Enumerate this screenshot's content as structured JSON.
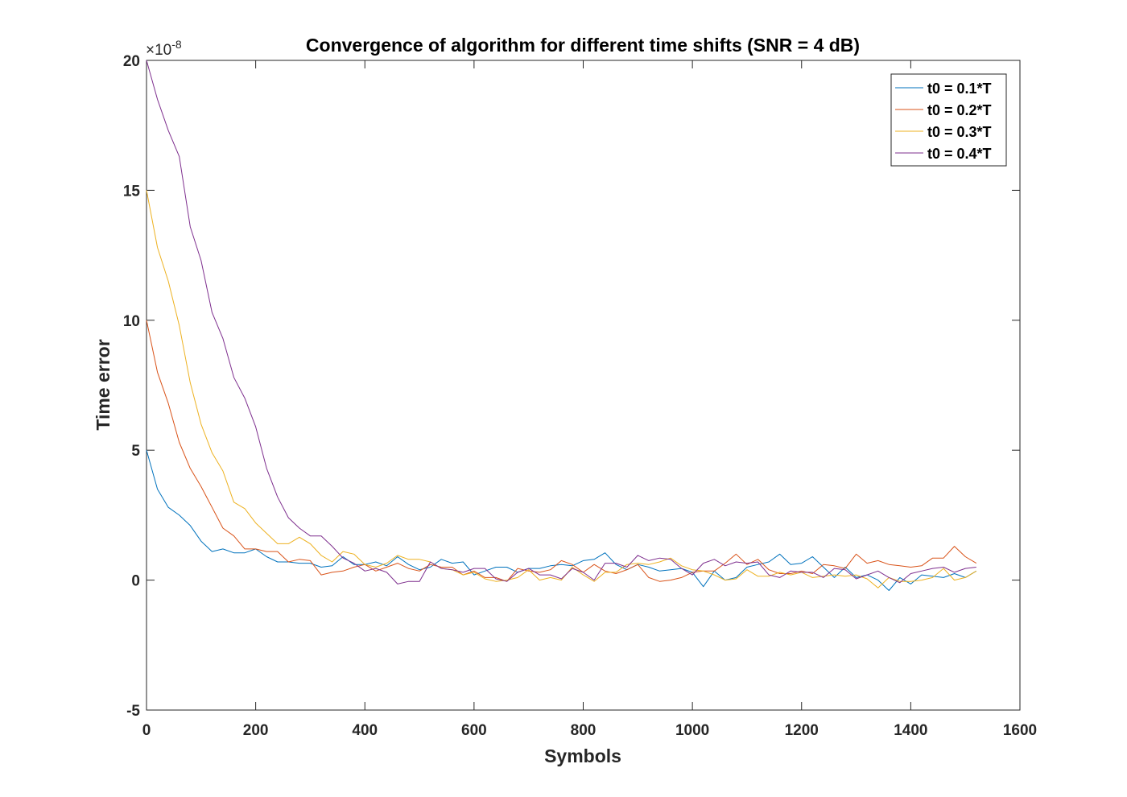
{
  "chart_data": {
    "type": "line",
    "title": "Convergence of algorithm for different time shifts (SNR = 4 dB)",
    "xlabel": "Symbols",
    "ylabel": "Time error",
    "y_multiplier": "×10",
    "y_multiplier_exponent": "-8",
    "xlim": [
      0,
      1600
    ],
    "ylim": [
      -5,
      20
    ],
    "xticks": [
      0,
      200,
      400,
      600,
      800,
      1000,
      1200,
      1400,
      1600
    ],
    "yticks": [
      -5,
      0,
      5,
      10,
      15,
      20
    ],
    "xtick_labels": [
      "0",
      "200",
      "400",
      "600",
      "800",
      "1000",
      "1200",
      "1400",
      "1600"
    ],
    "ytick_labels": [
      "-5",
      "0",
      "5",
      "10",
      "15",
      "20"
    ],
    "grid": false,
    "legend_position": "top-right",
    "x": [
      0,
      20,
      40,
      60,
      80,
      100,
      120,
      140,
      160,
      180,
      200,
      220,
      240,
      260,
      280,
      300,
      320,
      340,
      360,
      380,
      400,
      420,
      440,
      460,
      480,
      500,
      520,
      540,
      560,
      580,
      600,
      620,
      640,
      660,
      680,
      700,
      720,
      740,
      760,
      780,
      800,
      820,
      840,
      860,
      880,
      900,
      920,
      940,
      960,
      980,
      1000,
      1020,
      1040,
      1060,
      1080,
      1100,
      1120,
      1140,
      1160,
      1180,
      1200,
      1220,
      1240,
      1260,
      1280,
      1300,
      1320,
      1340,
      1360,
      1380,
      1400,
      1420,
      1440,
      1460,
      1480,
      1500,
      1520
    ],
    "series": [
      {
        "name": "t0 = 0.1*T",
        "color": "#0072BD",
        "values": [
          5.0,
          3.5,
          2.8,
          2.5,
          2.1,
          1.5,
          1.1,
          1.2,
          1.05,
          1.05,
          1.2,
          0.9,
          0.7,
          0.7,
          0.65,
          0.65,
          0.5,
          0.55,
          0.9,
          0.6,
          0.6,
          0.7,
          0.55,
          0.9,
          0.6,
          0.4,
          0.5,
          0.8,
          0.65,
          0.7,
          0.2,
          0.35,
          0.5,
          0.5,
          0.3,
          0.45,
          0.45,
          0.55,
          0.6,
          0.55,
          0.75,
          0.8,
          1.05,
          0.6,
          0.4,
          0.6,
          0.5,
          0.35,
          0.4,
          0.45,
          0.3,
          -0.25,
          0.35,
          0.0,
          0.1,
          0.5,
          0.6,
          0.7,
          1.0,
          0.6,
          0.65,
          0.9,
          0.5,
          0.1,
          0.5,
          0.1,
          0.2,
          0.0,
          -0.4,
          0.1,
          -0.15,
          0.2,
          0.15,
          0.1,
          0.25,
          0.1,
          0.35
        ]
      },
      {
        "name": "t0 = 0.2*T",
        "color": "#D95319",
        "values": [
          10.0,
          8.0,
          6.8,
          5.3,
          4.3,
          3.6,
          2.8,
          2.0,
          1.7,
          1.2,
          1.2,
          1.1,
          1.1,
          0.7,
          0.8,
          0.75,
          0.2,
          0.3,
          0.35,
          0.5,
          0.6,
          0.35,
          0.5,
          0.65,
          0.45,
          0.35,
          0.6,
          0.5,
          0.5,
          0.2,
          0.35,
          0.1,
          0.1,
          -0.05,
          0.45,
          0.35,
          0.3,
          0.4,
          0.75,
          0.6,
          0.3,
          0.6,
          0.35,
          0.25,
          0.4,
          0.6,
          0.1,
          -0.05,
          0.0,
          0.1,
          0.3,
          0.35,
          0.35,
          0.65,
          1.0,
          0.6,
          0.8,
          0.4,
          0.25,
          0.25,
          0.35,
          0.25,
          0.6,
          0.55,
          0.45,
          1.0,
          0.65,
          0.75,
          0.6,
          0.55,
          0.5,
          0.55,
          0.85,
          0.85,
          1.3,
          0.9,
          0.65
        ]
      },
      {
        "name": "t0 = 0.3*T",
        "color": "#EDB120",
        "values": [
          15.0,
          12.8,
          11.5,
          9.8,
          7.6,
          6.0,
          4.9,
          4.2,
          3.0,
          2.75,
          2.2,
          1.8,
          1.4,
          1.4,
          1.65,
          1.4,
          0.95,
          0.7,
          1.1,
          1.0,
          0.6,
          0.5,
          0.65,
          0.95,
          0.8,
          0.8,
          0.7,
          0.45,
          0.4,
          0.2,
          0.3,
          0.05,
          -0.05,
          0.0,
          0.1,
          0.4,
          0.0,
          0.1,
          0.0,
          0.5,
          0.2,
          -0.05,
          0.3,
          0.3,
          0.6,
          0.65,
          0.6,
          0.7,
          0.85,
          0.55,
          0.4,
          0.35,
          0.2,
          0.0,
          0.05,
          0.4,
          0.15,
          0.15,
          0.3,
          0.2,
          0.3,
          0.1,
          0.15,
          0.2,
          0.15,
          0.2,
          0.05,
          -0.3,
          0.1,
          -0.05,
          -0.05,
          0.0,
          0.1,
          0.45,
          0.0,
          0.1,
          0.35
        ]
      },
      {
        "name": "t0 = 0.4*T",
        "color": "#7E2F8E",
        "values": [
          20.0,
          18.5,
          17.3,
          16.3,
          13.6,
          12.3,
          10.3,
          9.3,
          7.8,
          7.0,
          5.9,
          4.3,
          3.2,
          2.4,
          2.0,
          1.7,
          1.7,
          1.3,
          0.85,
          0.65,
          0.35,
          0.45,
          0.3,
          -0.15,
          -0.05,
          -0.05,
          0.7,
          0.45,
          0.4,
          0.3,
          0.45,
          0.45,
          0.05,
          -0.05,
          0.3,
          0.45,
          0.2,
          0.2,
          0.05,
          0.45,
          0.3,
          0.0,
          0.65,
          0.65,
          0.5,
          0.95,
          0.75,
          0.85,
          0.8,
          0.45,
          0.2,
          0.65,
          0.8,
          0.55,
          0.7,
          0.65,
          0.7,
          0.2,
          0.1,
          0.35,
          0.3,
          0.3,
          0.1,
          0.45,
          0.4,
          0.05,
          0.2,
          0.35,
          0.1,
          -0.1,
          0.25,
          0.35,
          0.45,
          0.5,
          0.3,
          0.45,
          0.5
        ]
      }
    ]
  }
}
